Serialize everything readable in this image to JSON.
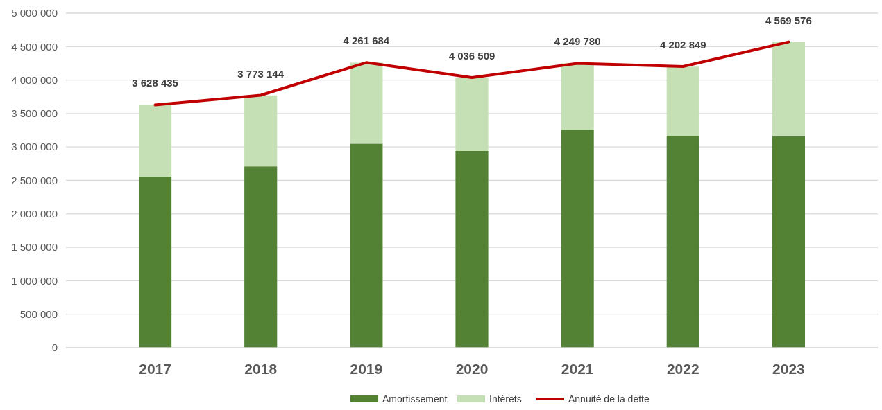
{
  "chart_data": {
    "type": "bar",
    "stacked": true,
    "categories": [
      "2017",
      "2018",
      "2019",
      "2020",
      "2021",
      "2022",
      "2023"
    ],
    "series": [
      {
        "name": "Amortissement",
        "color": "#548235",
        "values": [
          2560000,
          2710000,
          3050000,
          2940000,
          3260000,
          3170000,
          3160000
        ]
      },
      {
        "name": "Intérets",
        "color": "#c5e0b4",
        "values": [
          1070000,
          1060000,
          1210000,
          1100000,
          990000,
          1030000,
          1410000
        ]
      },
      {
        "name": "Annuité de la dette",
        "type": "line",
        "color": "#c00000",
        "marker": "none",
        "values": [
          3628435,
          3773144,
          4261684,
          4036509,
          4249780,
          4202849,
          4569576
        ],
        "value_labels": [
          "3 628 435",
          "3 773 144",
          "4 261 684",
          "4 036 509",
          "4 249 780",
          "4 202 849",
          "4 569 576"
        ]
      }
    ],
    "ylim": [
      0,
      5000000
    ],
    "yticks": [
      {
        "value": 0,
        "label": "0"
      },
      {
        "value": 500000,
        "label": "500 000"
      },
      {
        "value": 1000000,
        "label": "1 000 000"
      },
      {
        "value": 1500000,
        "label": "1 500 000"
      },
      {
        "value": 2000000,
        "label": "2 000 000"
      },
      {
        "value": 2500000,
        "label": "2 500 000"
      },
      {
        "value": 3000000,
        "label": "3 000 000"
      },
      {
        "value": 3500000,
        "label": "3 500 000"
      },
      {
        "value": 4000000,
        "label": "4 000 000"
      },
      {
        "value": 4500000,
        "label": "4 500 000"
      },
      {
        "value": 5000000,
        "label": "5 000 000"
      }
    ],
    "grid": "y",
    "legend": "bottom"
  }
}
